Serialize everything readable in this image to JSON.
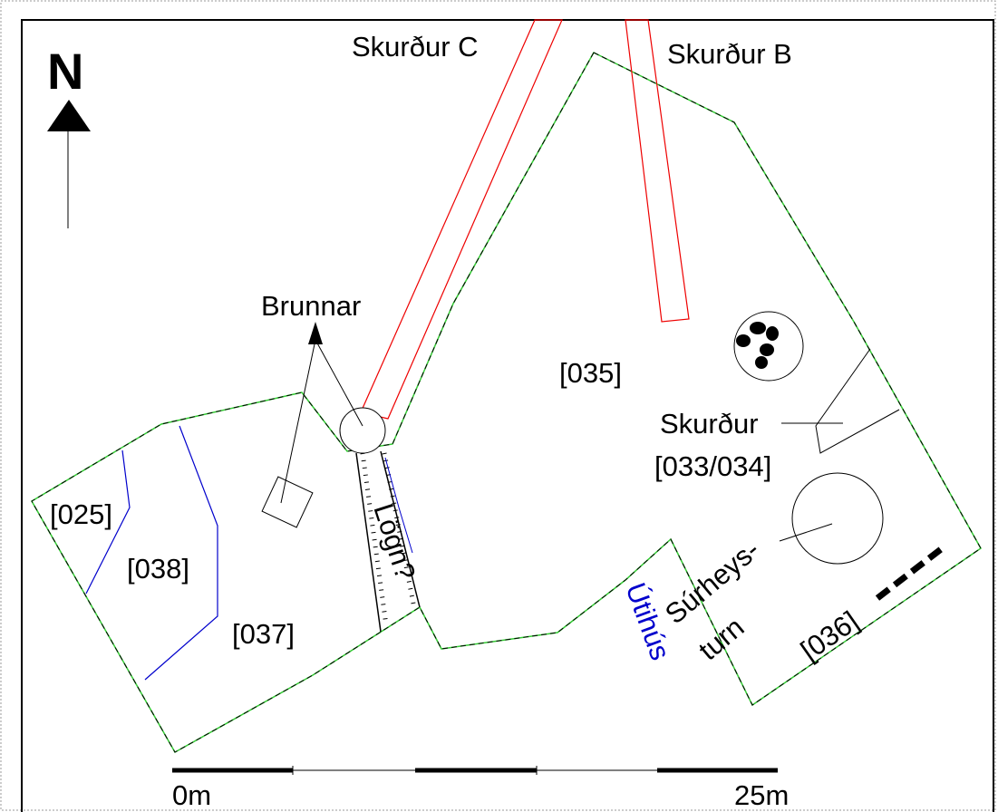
{
  "north": "N",
  "trenches": {
    "c": "Skurður C",
    "b": "Skurður B"
  },
  "wells": "Brunnar",
  "contexts": {
    "c035": "[035]",
    "ditch": "Skurður",
    "c033": "[033/034]",
    "c025": "[025]",
    "c038": "[038]",
    "c037": "[037]",
    "c036": "[036]"
  },
  "pipe": "Lögn?",
  "silo": {
    "line1": "Súrheys-",
    "line2": "turn"
  },
  "outhouse": "Útihús",
  "scale": {
    "start": "0m",
    "end": "25m"
  }
}
